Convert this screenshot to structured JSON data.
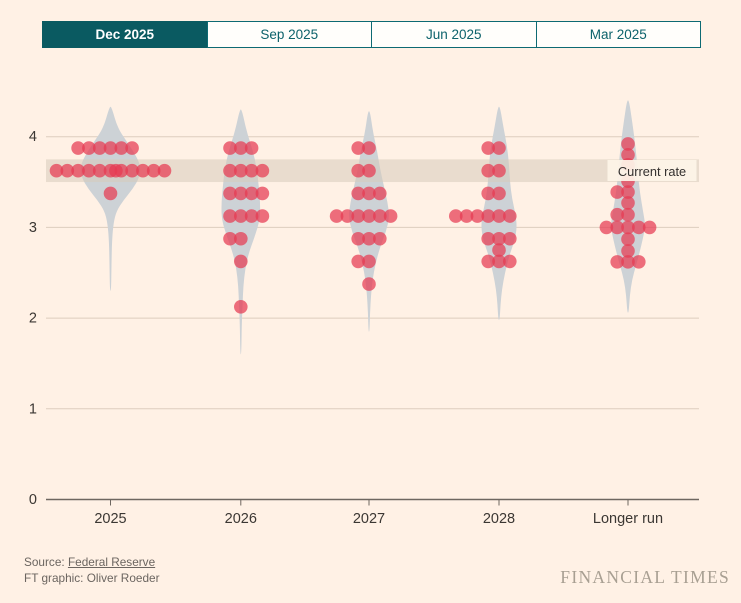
{
  "tabs": [
    {
      "label": "Dec 2025",
      "selected": true
    },
    {
      "label": "Sep 2025",
      "selected": false
    },
    {
      "label": "Jun 2025",
      "selected": false
    },
    {
      "label": "Mar 2025",
      "selected": false
    }
  ],
  "annotation": {
    "label": "Current rate",
    "from": 3.5,
    "to": 3.75
  },
  "footer": {
    "source_prefix": "Source: ",
    "source_link": "Federal Reserve",
    "credit": "FT graphic: Oliver Roeder",
    "wordmark": "FINANCIAL TIMES"
  },
  "colors": {
    "background": "#fff1e5",
    "tab_selected_bg": "#0a5a61",
    "tab_teal": "#0d6a73",
    "dot": "#e63a52",
    "dot_opacity": 0.72,
    "violin": "#cdd2d6",
    "band": "rgba(215,203,187,0.55)",
    "band_label_bg": "rgba(253,244,232,0.92)",
    "grid": "#ddcdbe",
    "axis": "#6e6760",
    "axis_text": "#3b3733",
    "label_text": "#33302e"
  },
  "chart_data": {
    "type": "scatter",
    "subtype": "beeswarm-with-violin",
    "title": "",
    "xlabel": "",
    "ylabel": "",
    "unit": "per cent",
    "ylim": [
      0,
      4.45
    ],
    "y_ticks": [
      "0",
      "1",
      "2",
      "3",
      "4"
    ],
    "y_tick_values": [
      0,
      1,
      2,
      3,
      4
    ],
    "categories": [
      "2025",
      "2026",
      "2027",
      "2028",
      "Longer run"
    ],
    "series": [
      {
        "name": "2025",
        "dots": [
          {
            "rate": 3.875,
            "count": 6,
            "dx": [
              -3,
              -2,
              -1,
              0,
              1,
              2
            ]
          },
          {
            "rate": 3.625,
            "count": 12,
            "dx": [
              -5,
              -4,
              -3,
              -2,
              -1,
              0,
              0.5,
              1,
              2,
              3,
              4,
              5
            ]
          },
          {
            "rate": 3.375,
            "count": 1,
            "dx": [
              0
            ]
          }
        ],
        "violin": [
          [
            4.33,
            1
          ],
          [
            4.1,
            7
          ],
          [
            3.95,
            16
          ],
          [
            3.8,
            25
          ],
          [
            3.68,
            30
          ],
          [
            3.55,
            29
          ],
          [
            3.42,
            22
          ],
          [
            3.3,
            13
          ],
          [
            3.18,
            6
          ],
          [
            3.05,
            3
          ],
          [
            2.85,
            1.5
          ],
          [
            2.6,
            1
          ],
          [
            2.3,
            0.6
          ]
        ]
      },
      {
        "name": "2026",
        "dots": [
          {
            "rate": 3.875,
            "count": 3,
            "dx": [
              -1,
              0,
              1
            ]
          },
          {
            "rate": 3.625,
            "count": 4,
            "dx": [
              -1,
              0,
              1,
              2
            ]
          },
          {
            "rate": 3.375,
            "count": 4,
            "dx": [
              -1,
              0,
              1,
              2
            ]
          },
          {
            "rate": 3.125,
            "count": 4,
            "dx": [
              -1,
              0,
              1,
              2
            ]
          },
          {
            "rate": 2.875,
            "count": 2,
            "dx": [
              -1,
              0
            ]
          },
          {
            "rate": 2.625,
            "count": 1,
            "dx": [
              0
            ]
          },
          {
            "rate": 2.125,
            "count": 1,
            "dx": [
              0
            ]
          }
        ],
        "violin": [
          [
            4.3,
            1
          ],
          [
            4.05,
            6
          ],
          [
            3.85,
            12
          ],
          [
            3.65,
            16
          ],
          [
            3.45,
            18
          ],
          [
            3.25,
            19.5
          ],
          [
            3.08,
            19
          ],
          [
            2.9,
            14
          ],
          [
            2.72,
            8
          ],
          [
            2.55,
            4.5
          ],
          [
            2.35,
            2.5
          ],
          [
            2.15,
            1.8
          ],
          [
            1.95,
            1
          ],
          [
            1.6,
            0.5
          ]
        ]
      },
      {
        "name": "2027",
        "dots": [
          {
            "rate": 3.875,
            "count": 2,
            "dx": [
              -1,
              0
            ]
          },
          {
            "rate": 3.625,
            "count": 2,
            "dx": [
              -1,
              0
            ]
          },
          {
            "rate": 3.375,
            "count": 3,
            "dx": [
              -1,
              0,
              1
            ]
          },
          {
            "rate": 3.125,
            "count": 6,
            "dx": [
              -3,
              -2,
              -1,
              0,
              1,
              2
            ]
          },
          {
            "rate": 2.875,
            "count": 3,
            "dx": [
              -1,
              0,
              1
            ]
          },
          {
            "rate": 2.625,
            "count": 2,
            "dx": [
              -1,
              0
            ]
          },
          {
            "rate": 2.375,
            "count": 1,
            "dx": [
              0
            ]
          }
        ],
        "violin": [
          [
            4.28,
            1
          ],
          [
            4.05,
            4
          ],
          [
            3.85,
            8
          ],
          [
            3.65,
            11
          ],
          [
            3.45,
            15
          ],
          [
            3.28,
            18.5
          ],
          [
            3.12,
            20.5
          ],
          [
            2.95,
            17
          ],
          [
            2.78,
            11
          ],
          [
            2.6,
            6.5
          ],
          [
            2.42,
            3.5
          ],
          [
            2.25,
            2
          ],
          [
            2.05,
            1
          ],
          [
            1.85,
            0.5
          ]
        ]
      },
      {
        "name": "2028",
        "dots": [
          {
            "rate": 3.875,
            "count": 2,
            "dx": [
              -1,
              0
            ]
          },
          {
            "rate": 3.625,
            "count": 2,
            "dx": [
              -1,
              0
            ]
          },
          {
            "rate": 3.375,
            "count": 2,
            "dx": [
              -1,
              0
            ]
          },
          {
            "rate": 3.125,
            "count": 6,
            "dx": [
              -4,
              -3,
              -2,
              -1,
              0,
              1
            ]
          },
          {
            "rate": 2.875,
            "count": 3,
            "dx": [
              -1,
              0,
              1
            ]
          },
          {
            "rate": 2.75,
            "count": 1,
            "dx": [
              0
            ]
          },
          {
            "rate": 2.625,
            "count": 3,
            "dx": [
              -1,
              0,
              1
            ]
          }
        ],
        "violin": [
          [
            4.33,
            1
          ],
          [
            4.1,
            4.5
          ],
          [
            3.9,
            8
          ],
          [
            3.7,
            10
          ],
          [
            3.5,
            11
          ],
          [
            3.32,
            13
          ],
          [
            3.15,
            16.5
          ],
          [
            3.0,
            18
          ],
          [
            2.85,
            15.5
          ],
          [
            2.68,
            10
          ],
          [
            2.5,
            6
          ],
          [
            2.32,
            3
          ],
          [
            2.15,
            1.5
          ],
          [
            1.98,
            0.7
          ]
        ]
      },
      {
        "name": "Longer run",
        "dots": [
          {
            "rate": 3.92,
            "count": 1,
            "dx": [
              0
            ]
          },
          {
            "rate": 3.8,
            "count": 1,
            "dx": [
              0
            ]
          },
          {
            "rate": 3.69,
            "count": 1,
            "dx": [
              0
            ]
          },
          {
            "rate": 3.51,
            "count": 1,
            "dx": [
              0
            ]
          },
          {
            "rate": 3.39,
            "count": 2,
            "dx": [
              -1,
              0
            ]
          },
          {
            "rate": 3.27,
            "count": 1,
            "dx": [
              0
            ]
          },
          {
            "rate": 3.14,
            "count": 2,
            "dx": [
              -1,
              0
            ]
          },
          {
            "rate": 3.0,
            "count": 5,
            "dx": [
              -2,
              -1,
              0,
              1,
              2
            ]
          },
          {
            "rate": 2.87,
            "count": 1,
            "dx": [
              0
            ]
          },
          {
            "rate": 2.74,
            "count": 1,
            "dx": [
              0
            ]
          },
          {
            "rate": 2.62,
            "count": 3,
            "dx": [
              -1,
              0,
              1
            ]
          }
        ],
        "violin": [
          [
            4.4,
            1
          ],
          [
            4.18,
            4
          ],
          [
            3.98,
            6.5
          ],
          [
            3.78,
            8.5
          ],
          [
            3.58,
            10
          ],
          [
            3.38,
            12
          ],
          [
            3.18,
            15
          ],
          [
            3.02,
            17.5
          ],
          [
            2.88,
            15
          ],
          [
            2.72,
            11.5
          ],
          [
            2.58,
            8
          ],
          [
            2.42,
            4
          ],
          [
            2.25,
            1.8
          ],
          [
            2.06,
            0.7
          ]
        ]
      }
    ],
    "legend": [],
    "grid": "horizontal"
  }
}
